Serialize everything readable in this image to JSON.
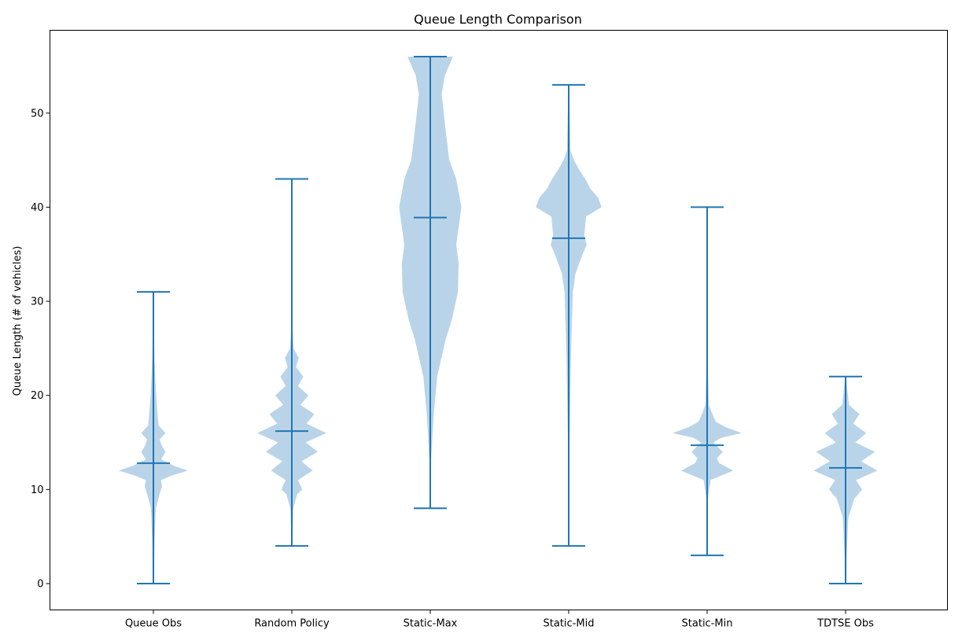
{
  "chart_data": {
    "type": "violin",
    "title": "Queue Length Comparison",
    "xlabel": "",
    "ylabel": "Queue Length (# of vehicles)",
    "ylim": [
      -2.8,
      58.8
    ],
    "yticks": [
      0,
      10,
      20,
      30,
      40,
      50
    ],
    "grid": false,
    "legend": "none",
    "colors": {
      "body": "#b9d4e8",
      "line": "#1f77b4"
    },
    "categories": [
      "Queue Obs",
      "Random Policy",
      "Static-Max",
      "Static-Mid",
      "Static-Min",
      "TDTSE Obs"
    ],
    "series": [
      {
        "min": 0,
        "max": 31,
        "mean": 12.8,
        "density": [
          [
            0,
            0.02
          ],
          [
            4,
            0.03
          ],
          [
            8,
            0.07
          ],
          [
            9.5,
            0.18
          ],
          [
            10.3,
            0.25
          ],
          [
            11,
            0.22
          ],
          [
            11.5,
            0.55
          ],
          [
            12,
            1.0
          ],
          [
            12.5,
            0.6
          ],
          [
            13.2,
            0.22
          ],
          [
            14,
            0.35
          ],
          [
            14.6,
            0.25
          ],
          [
            15.3,
            0.18
          ],
          [
            16,
            0.35
          ],
          [
            16.8,
            0.15
          ],
          [
            18,
            0.12
          ],
          [
            20,
            0.08
          ],
          [
            24,
            0.03
          ],
          [
            31,
            0.01
          ]
        ]
      },
      {
        "min": 4,
        "max": 43,
        "mean": 16.2,
        "density": [
          [
            4,
            0.01
          ],
          [
            8,
            0.04
          ],
          [
            9.5,
            0.16
          ],
          [
            10,
            0.3
          ],
          [
            11,
            0.18
          ],
          [
            12,
            0.6
          ],
          [
            13,
            0.28
          ],
          [
            14,
            0.75
          ],
          [
            15,
            0.4
          ],
          [
            16,
            1.0
          ],
          [
            17,
            0.42
          ],
          [
            18,
            0.65
          ],
          [
            19,
            0.25
          ],
          [
            20,
            0.48
          ],
          [
            21,
            0.18
          ],
          [
            22,
            0.33
          ],
          [
            23,
            0.12
          ],
          [
            24,
            0.2
          ],
          [
            25,
            0.05
          ],
          [
            27,
            0.02
          ],
          [
            43,
            0.01
          ]
        ]
      },
      {
        "min": 8,
        "max": 56,
        "mean": 38.9,
        "density": [
          [
            8,
            0.01
          ],
          [
            13,
            0.02
          ],
          [
            18,
            0.1
          ],
          [
            22,
            0.2
          ],
          [
            26,
            0.45
          ],
          [
            28,
            0.62
          ],
          [
            31,
            0.8
          ],
          [
            34,
            0.82
          ],
          [
            36,
            0.75
          ],
          [
            40,
            0.9
          ],
          [
            43,
            0.75
          ],
          [
            45,
            0.55
          ],
          [
            48,
            0.45
          ],
          [
            52,
            0.33
          ],
          [
            54,
            0.42
          ],
          [
            55.5,
            0.6
          ],
          [
            56,
            0.65
          ]
        ]
      },
      {
        "min": 4,
        "max": 53,
        "mean": 36.7,
        "density": [
          [
            4,
            0.01
          ],
          [
            15,
            0.02
          ],
          [
            25,
            0.07
          ],
          [
            31,
            0.12
          ],
          [
            33,
            0.2
          ],
          [
            35,
            0.4
          ],
          [
            36,
            0.52
          ],
          [
            37,
            0.45
          ],
          [
            39,
            0.5
          ],
          [
            40,
            0.95
          ],
          [
            41,
            0.85
          ],
          [
            42,
            0.62
          ],
          [
            43,
            0.48
          ],
          [
            44,
            0.3
          ],
          [
            45,
            0.15
          ],
          [
            46,
            0.05
          ],
          [
            53,
            0.01
          ]
        ]
      },
      {
        "min": 3,
        "max": 40,
        "mean": 14.7,
        "density": [
          [
            3,
            0.01
          ],
          [
            9,
            0.02
          ],
          [
            11,
            0.1
          ],
          [
            12,
            0.75
          ],
          [
            12.8,
            0.35
          ],
          [
            13.3,
            0.28
          ],
          [
            14,
            0.45
          ],
          [
            15,
            0.18
          ],
          [
            15.5,
            0.4
          ],
          [
            16,
            1.0
          ],
          [
            16.6,
            0.55
          ],
          [
            17.2,
            0.25
          ],
          [
            18.3,
            0.12
          ],
          [
            19,
            0.05
          ],
          [
            25,
            0.01
          ],
          [
            40,
            0.01
          ]
        ]
      },
      {
        "min": 0,
        "max": 22,
        "mean": 12.3,
        "density": [
          [
            0,
            0.02
          ],
          [
            3,
            0.03
          ],
          [
            7,
            0.08
          ],
          [
            9,
            0.25
          ],
          [
            10,
            0.48
          ],
          [
            11,
            0.3
          ],
          [
            12,
            0.92
          ],
          [
            13,
            0.45
          ],
          [
            14,
            0.85
          ],
          [
            15,
            0.28
          ],
          [
            16,
            0.6
          ],
          [
            17,
            0.22
          ],
          [
            18,
            0.4
          ],
          [
            19,
            0.1
          ],
          [
            22,
            0.01
          ]
        ]
      }
    ]
  }
}
